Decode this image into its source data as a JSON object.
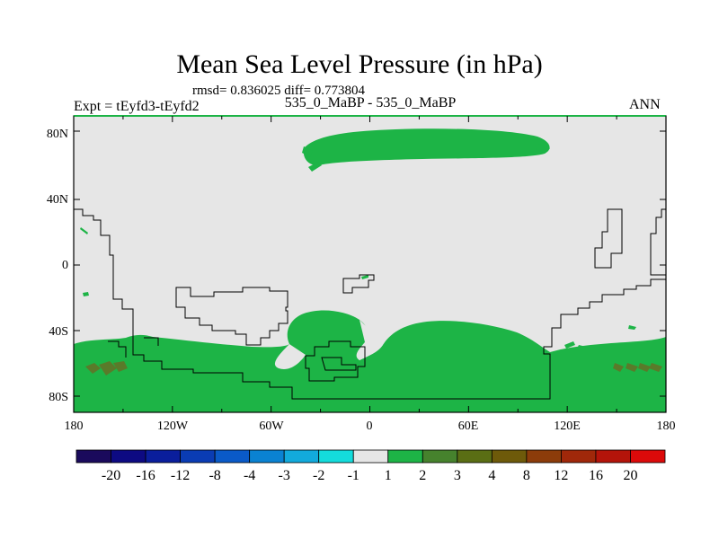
{
  "chart_data": {
    "type": "contour-map",
    "title": "Mean Sea Level Pressure (in hPa)",
    "stats": "rmsd= 0.836025 diff= 0.773804",
    "left_string": "Expt = tEyfd3-tEyfd2",
    "center_string": "535_0_MaBP - 535_0_MaBP",
    "right_string": "ANN",
    "x_axis": {
      "labels": [
        "180",
        "120W",
        "60W",
        "0",
        "60E",
        "120E",
        "180"
      ],
      "range": [
        -180,
        180
      ]
    },
    "y_axis": {
      "labels": [
        "80N",
        "40N",
        "0",
        "40S",
        "80S"
      ],
      "range": [
        -90,
        90
      ]
    },
    "colorbar": {
      "levels": [
        "-20",
        "-16",
        "-12",
        "-8",
        "-4",
        "-3",
        "-2",
        "-1",
        "1",
        "2",
        "3",
        "4",
        "8",
        "12",
        "16",
        "20"
      ],
      "colors": [
        "#1a0a5c",
        "#0d0a82",
        "#0a1e9c",
        "#0a3cb4",
        "#0a5ac8",
        "#0a82d2",
        "#12aadc",
        "#14dcdc",
        "#e6e6e6",
        "#1db446",
        "#46822d",
        "#5a6e14",
        "#6e5a0a",
        "#8c3c0a",
        "#a0280a",
        "#b4140a",
        "#dc0a0a"
      ]
    },
    "field_colors": {
      "background": "#e6e6e6",
      "positive_1_to_2": "#1db446",
      "positive_2_to_3": "#5a7a2a"
    }
  }
}
